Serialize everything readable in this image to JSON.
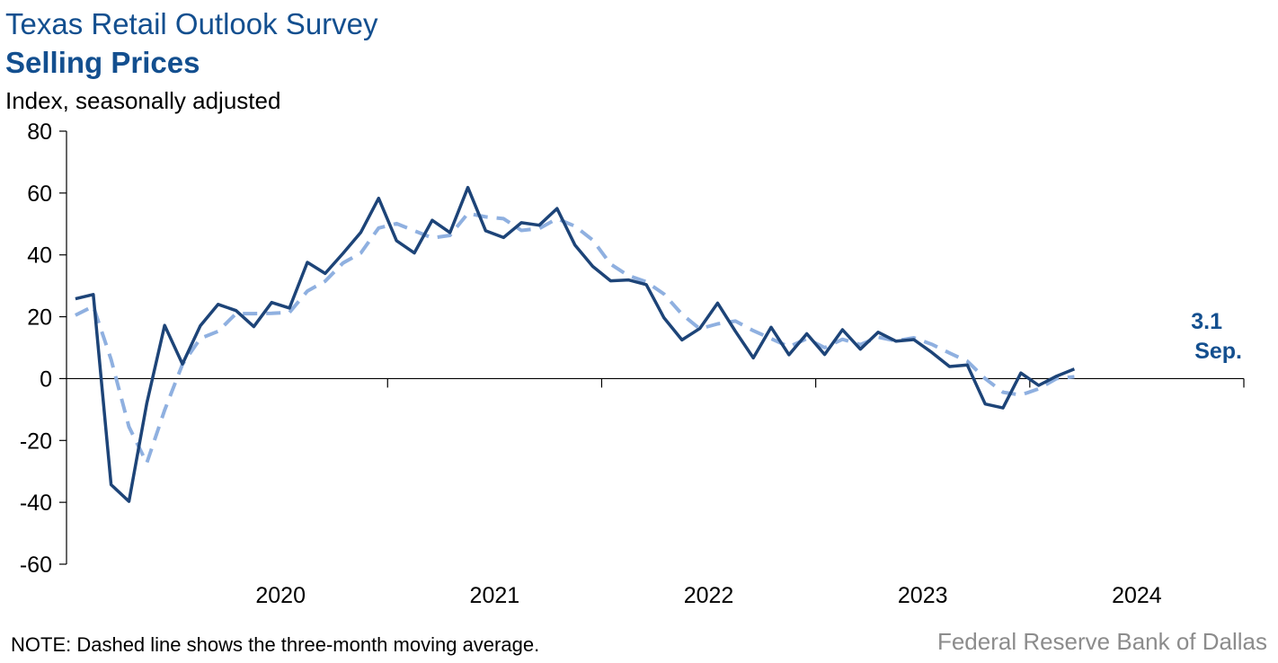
{
  "header": {
    "title": "Texas Retail Outlook Survey",
    "subtitle": "Selling Prices",
    "units": "Index, seasonally adjusted"
  },
  "footer": {
    "note": "NOTE: Dashed line shows the three-month moving average.",
    "source": "Federal Reserve Bank of Dallas"
  },
  "colors": {
    "brand": "#134f8f",
    "series_main": "#1d4478",
    "series_ma": "#8fb0e0",
    "source_text": "#8c8c8c"
  },
  "chart_data": {
    "type": "line",
    "title": "Selling Prices",
    "ylabel": "Index, seasonally adjusted",
    "ylim": [
      -60,
      80
    ],
    "yticks": [
      80,
      60,
      40,
      20,
      0,
      -20,
      -40,
      -60
    ],
    "year_labels": [
      "2020",
      "2021",
      "2022",
      "2023",
      "2024"
    ],
    "x_start": "2019-07",
    "x_end": "2024-09",
    "grid": false,
    "series": [
      {
        "style": "solid",
        "values": [
          25.8,
          27.2,
          -34.3,
          -39.7,
          -8.0,
          17.2,
          4.7,
          17.1,
          24.0,
          22.0,
          16.8,
          24.6,
          22.8,
          37.6,
          34.0,
          40.5,
          47.3,
          58.3,
          44.6,
          40.6,
          51.2,
          47.2,
          61.8,
          47.8,
          45.6,
          50.4,
          49.6,
          55.0,
          43.2,
          36.3,
          31.6,
          31.9,
          30.4,
          19.6,
          12.5,
          16.2,
          24.4,
          15.3,
          6.7,
          16.6,
          7.7,
          14.5,
          7.8,
          15.8,
          9.5,
          15.0,
          12.1,
          12.6,
          8.5,
          3.9,
          4.4,
          -8.2,
          -9.5,
          1.8,
          -2.2,
          0.8,
          3.1
        ]
      },
      {
        "style": "dashed",
        "values": [
          20.5,
          23.4,
          6.2,
          -15.6,
          -27.3,
          -10.2,
          4.6,
          13.0,
          15.3,
          21.0,
          21.0,
          21.1,
          21.4,
          28.3,
          31.5,
          37.4,
          40.6,
          48.7,
          50.1,
          47.8,
          45.5,
          46.3,
          53.4,
          52.3,
          51.7,
          47.9,
          48.5,
          51.7,
          49.3,
          44.8,
          37.0,
          33.3,
          31.3,
          27.3,
          20.8,
          16.1,
          17.7,
          18.6,
          15.5,
          12.9,
          10.3,
          12.9,
          10.0,
          12.7,
          11.0,
          13.4,
          12.2,
          13.2,
          11.1,
          8.3,
          5.6,
          -0.0,
          -4.4,
          -5.3,
          -3.3,
          -0.0,
          0.6
        ]
      }
    ],
    "end_label": {
      "value": "3.1",
      "month": "Sep."
    }
  }
}
